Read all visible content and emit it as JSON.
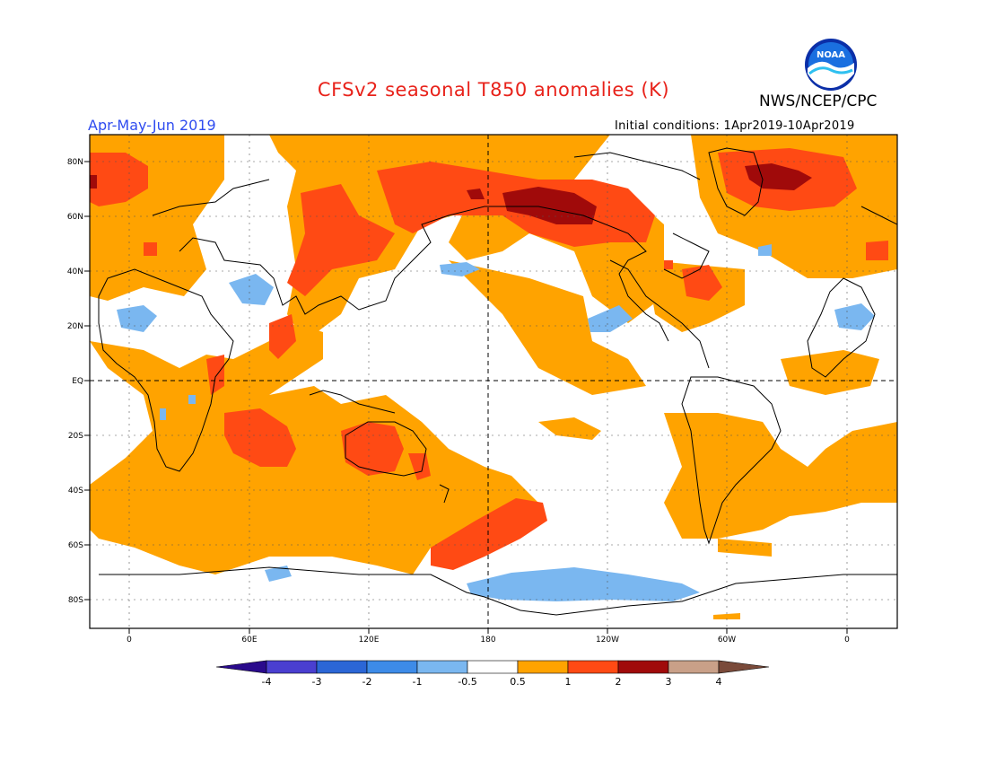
{
  "header": {
    "title": "CFSv2 seasonal T850 anomalies (K)",
    "agency": "NWS/NCEP/CPC",
    "season": "Apr-May-Jun 2019",
    "initial_conditions": "Initial conditions: 1Apr2019-10Apr2019",
    "logo_text": "NOAA"
  },
  "axes": {
    "lat_labels": [
      "80N",
      "60N",
      "40N",
      "20N",
      "EQ",
      "20S",
      "40S",
      "60S",
      "80S"
    ],
    "lon_labels": [
      "0",
      "60E",
      "120E",
      "180",
      "120W",
      "60W",
      "0"
    ]
  },
  "colorbar": {
    "labels": [
      "-4",
      "-3",
      "-2",
      "-1",
      "-0.5",
      "0.5",
      "1",
      "2",
      "3",
      "4"
    ],
    "colors": [
      "#2a0a8c",
      "#4a3fd0",
      "#2b66d6",
      "#3d8be8",
      "#7ab7f0",
      "#ffffff",
      "#ffa300",
      "#ff4a14",
      "#a00a0a",
      "#c9a088",
      "#7a4a3a"
    ]
  },
  "colors": {
    "ocean": "#ffffff",
    "warm1": "#ffa300",
    "warm2": "#ff4a14",
    "warm3": "#a00a0a",
    "cool1": "#7ab7f0"
  }
}
